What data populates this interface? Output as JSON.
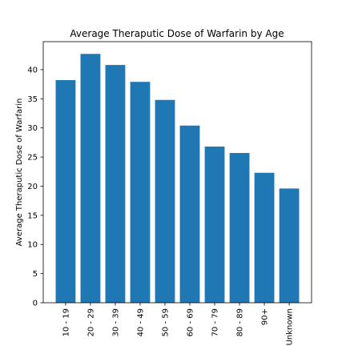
{
  "chart_data": {
    "type": "bar",
    "title": "Average Theraputic Dose of Warfarin by Age",
    "xlabel": "",
    "ylabel": "Average Theraputic Dose of Warfarin",
    "categories": [
      "10 - 19",
      "20 - 29",
      "30 - 39",
      "40 - 49",
      "50 - 59",
      "60 - 69",
      "70 - 79",
      "80 - 89",
      "90+",
      "Unknown"
    ],
    "values": [
      38.2,
      42.7,
      40.8,
      37.9,
      34.8,
      30.4,
      26.8,
      25.7,
      22.3,
      19.6
    ],
    "ylim": [
      0,
      44.8
    ],
    "yticks": [
      0,
      5,
      10,
      15,
      20,
      25,
      30,
      35,
      40
    ],
    "bar_color": "#1f77b4",
    "grid": false,
    "legend": "none"
  }
}
